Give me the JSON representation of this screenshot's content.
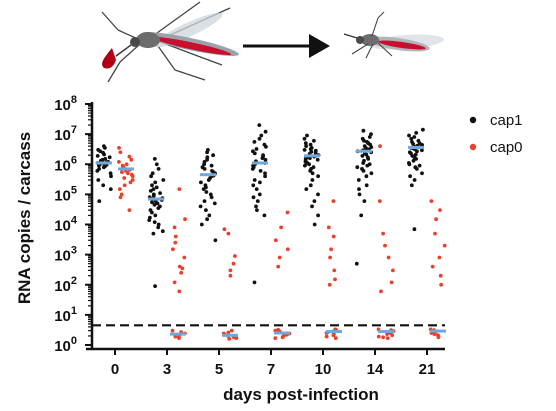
{
  "chart_data": {
    "type": "scatter",
    "title": "",
    "xlabel": "days post-infection",
    "ylabel": "RNA copies / carcass",
    "y_scale": "log10",
    "ylim": [
      1,
      100000000
    ],
    "y_ticks": [
      {
        "value": 1,
        "mantissa": "10",
        "exp": "0"
      },
      {
        "value": 10,
        "mantissa": "10",
        "exp": "1"
      },
      {
        "value": 100,
        "mantissa": "10",
        "exp": "2"
      },
      {
        "value": 1000,
        "mantissa": "10",
        "exp": "3"
      },
      {
        "value": 10000,
        "mantissa": "10",
        "exp": "4"
      },
      {
        "value": 100000,
        "mantissa": "10",
        "exp": "5"
      },
      {
        "value": 1000000,
        "mantissa": "10",
        "exp": "6"
      },
      {
        "value": 10000000,
        "mantissa": "10",
        "exp": "7"
      },
      {
        "value": 100000000,
        "mantissa": "10",
        "exp": "8"
      }
    ],
    "categories": [
      "0",
      "3",
      "5",
      "7",
      "10",
      "14",
      "21"
    ],
    "detection_limit": 4.5,
    "median_color": "#6fa8dc",
    "series": [
      {
        "name": "cap1",
        "color": "#111111",
        "medians": [
          1100000,
          70000,
          450000,
          1100000,
          1900000,
          2700000,
          3600000
        ],
        "points": [
          [
            4000000,
            3500000,
            3000000,
            2700000,
            2400000,
            2100000,
            1900000,
            1700000,
            1500000,
            1400000,
            1300000,
            1200000,
            1150000,
            1100000,
            1050000,
            1000000,
            950000,
            900000,
            850000,
            800000,
            700000,
            600000,
            500000,
            400000,
            300000,
            200000,
            150000,
            60000
          ],
          [
            1500000,
            1000000,
            700000,
            500000,
            400000,
            300000,
            250000,
            200000,
            170000,
            150000,
            130000,
            110000,
            100000,
            90000,
            80000,
            75000,
            70000,
            65000,
            60000,
            55000,
            50000,
            45000,
            40000,
            35000,
            30000,
            25000,
            20000,
            17000,
            14000,
            12000,
            10000,
            8000,
            6000,
            5000,
            90
          ],
          [
            3000000,
            2500000,
            2000000,
            1700000,
            1400000,
            1200000,
            1000000,
            900000,
            800000,
            700000,
            600000,
            550000,
            500000,
            450000,
            420000,
            400000,
            350000,
            300000,
            250000,
            200000,
            170000,
            150000,
            120000,
            100000,
            80000,
            60000,
            50000,
            40000,
            30000,
            20000,
            15000,
            10000,
            3000
          ],
          [
            20000000,
            12000000,
            9000000,
            7000000,
            5500000,
            4500000,
            3800000,
            3200000,
            2700000,
            2300000,
            2000000,
            1800000,
            1600000,
            1400000,
            1250000,
            1100000,
            1000000,
            900000,
            800000,
            700000,
            600000,
            500000,
            400000,
            300000,
            250000,
            200000,
            150000,
            100000,
            80000,
            60000,
            40000,
            30000,
            20000,
            120
          ],
          [
            9000000,
            7000000,
            6000000,
            5000000,
            4500000,
            4000000,
            3500000,
            3200000,
            3000000,
            2800000,
            2600000,
            2400000,
            2200000,
            2000000,
            1900000,
            1800000,
            1700000,
            1600000,
            1500000,
            1400000,
            1300000,
            1200000,
            1100000,
            1000000,
            900000,
            800000,
            700000,
            600000,
            500000,
            400000,
            300000,
            200000,
            150000,
            100000,
            60000,
            40000,
            20000,
            10000
          ],
          [
            13000000,
            10000000,
            8000000,
            7000000,
            6000000,
            5500000,
            5000000,
            4500000,
            4000000,
            3700000,
            3400000,
            3100000,
            2900000,
            2700000,
            2500000,
            2300000,
            2100000,
            1900000,
            1700000,
            1500000,
            1300000,
            1100000,
            1000000,
            900000,
            800000,
            700000,
            600000,
            500000,
            400000,
            300000,
            200000,
            150000,
            100000,
            60000,
            20000,
            500
          ],
          [
            14000000,
            11000000,
            9000000,
            8000000,
            7000000,
            6000000,
            5500000,
            5000000,
            4700000,
            4400000,
            4100000,
            3900000,
            3700000,
            3500000,
            3300000,
            3100000,
            2900000,
            2700000,
            2500000,
            2300000,
            2100000,
            1900000,
            1700000,
            1500000,
            1300000,
            1100000,
            1000000,
            900000,
            800000,
            700000,
            500000,
            400000,
            300000,
            200000,
            7000
          ]
        ]
      },
      {
        "name": "cap0",
        "color": "#e8412c",
        "medians": [
          700000,
          2.3,
          2.1,
          2.5,
          2.8,
          2.8,
          2.9
        ],
        "points": [
          [
            3500000,
            2500000,
            1800000,
            1400000,
            1200000,
            1000000,
            900000,
            800000,
            700000,
            650000,
            600000,
            550000,
            500000,
            450000,
            400000,
            350000,
            300000,
            250000,
            200000,
            150000,
            100000,
            80000,
            30000
          ],
          [
            150000,
            15000,
            8000,
            4000,
            2500,
            1500,
            800,
            400,
            350,
            250,
            120,
            60,
            3.0,
            2.7,
            2.4,
            2.2,
            2.0,
            1.9,
            1.8,
            1.7
          ],
          [
            7000,
            5000,
            900,
            500,
            300,
            200,
            3.0,
            2.6,
            2.4,
            2.2,
            2.0,
            1.9,
            1.8,
            1.7,
            1.6
          ],
          [
            25000,
            8000,
            3000,
            1500,
            800,
            400,
            3.2,
            3.0,
            2.8,
            2.6,
            2.4,
            2.2,
            2.0,
            1.8,
            1.7
          ],
          [
            60000,
            8000,
            4000,
            1500,
            800,
            300,
            150,
            100,
            3.3,
            3.1,
            2.9,
            2.7,
            2.5,
            2.3,
            2.1,
            1.9,
            1.7
          ],
          [
            4000000,
            60000,
            5000,
            2000,
            800,
            300,
            120,
            60,
            3.3,
            3.1,
            2.9,
            2.7,
            2.5,
            2.3,
            2.1,
            1.9,
            1.8,
            1.7
          ],
          [
            60000,
            30000,
            15000,
            5000,
            2000,
            800,
            400,
            200,
            100,
            3.3,
            3.1,
            2.9,
            2.7,
            2.5,
            2.3,
            2.1,
            1.9,
            1.8
          ]
        ]
      }
    ],
    "legend": {
      "placement": "right"
    }
  }
}
